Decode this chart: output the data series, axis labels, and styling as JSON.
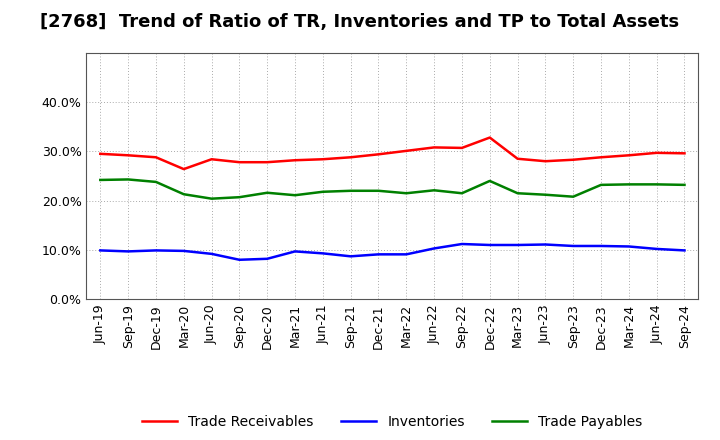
{
  "title": "[2768]  Trend of Ratio of TR, Inventories and TP to Total Assets",
  "x_labels": [
    "Jun-19",
    "Sep-19",
    "Dec-19",
    "Mar-20",
    "Jun-20",
    "Sep-20",
    "Dec-20",
    "Mar-21",
    "Jun-21",
    "Sep-21",
    "Dec-21",
    "Mar-22",
    "Jun-22",
    "Sep-22",
    "Dec-22",
    "Mar-23",
    "Jun-23",
    "Sep-23",
    "Dec-23",
    "Mar-24",
    "Jun-24",
    "Sep-24"
  ],
  "trade_receivables": [
    0.295,
    0.292,
    0.288,
    0.264,
    0.284,
    0.278,
    0.278,
    0.282,
    0.284,
    0.288,
    0.294,
    0.301,
    0.308,
    0.307,
    0.328,
    0.285,
    0.28,
    0.283,
    0.288,
    0.292,
    0.297,
    0.296
  ],
  "inventories": [
    0.099,
    0.097,
    0.099,
    0.098,
    0.092,
    0.08,
    0.082,
    0.097,
    0.093,
    0.087,
    0.091,
    0.091,
    0.103,
    0.112,
    0.11,
    0.11,
    0.111,
    0.108,
    0.108,
    0.107,
    0.102,
    0.099
  ],
  "trade_payables": [
    0.242,
    0.243,
    0.238,
    0.213,
    0.204,
    0.207,
    0.216,
    0.211,
    0.218,
    0.22,
    0.22,
    0.215,
    0.221,
    0.215,
    0.24,
    0.215,
    0.212,
    0.208,
    0.232,
    0.233,
    0.233,
    0.232
  ],
  "ylim": [
    0.0,
    0.5
  ],
  "yticks": [
    0.0,
    0.1,
    0.2,
    0.3,
    0.4
  ],
  "tr_color": "#ff0000",
  "inv_color": "#0000ff",
  "tp_color": "#008000",
  "bg_color": "#ffffff",
  "grid_color": "#aaaaaa",
  "legend_labels": [
    "Trade Receivables",
    "Inventories",
    "Trade Payables"
  ],
  "title_fontsize": 13,
  "tick_fontsize": 9,
  "legend_fontsize": 10
}
